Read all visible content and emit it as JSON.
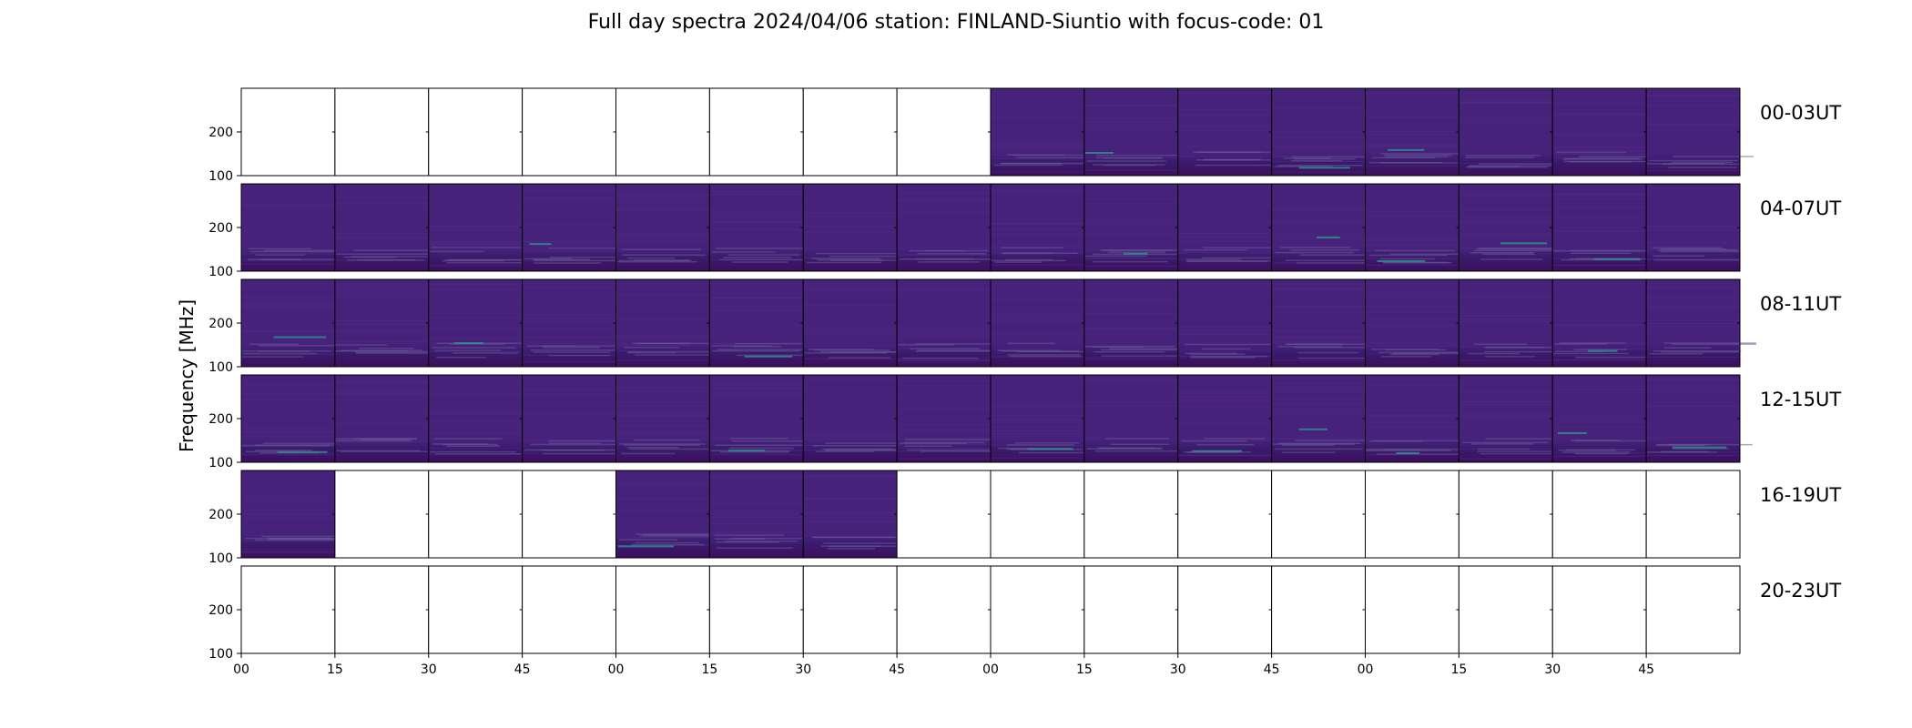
{
  "title": "Full day spectra 2024/04/06 station: FINLAND-Siuntio with focus-code: 01",
  "chart_data": {
    "type": "heatmap",
    "title": "Full day spectra 2024/04/06 station: FINLAND-Siuntio with focus-code: 01",
    "ylabel": "Frequency [MHz]",
    "xlabel": "",
    "y_ticks": [
      "100",
      "200"
    ],
    "ylim": [
      100,
      300
    ],
    "x_tick_labels": [
      "00",
      "15",
      "30",
      "45",
      "00",
      "15",
      "30",
      "45",
      "00",
      "15",
      "30",
      "45",
      "00",
      "15",
      "30",
      "45"
    ],
    "panels_per_row": 16,
    "minutes_per_panel": 15,
    "rows": [
      {
        "label": "00-03UT",
        "filled": [
          false,
          false,
          false,
          false,
          false,
          false,
          false,
          false,
          true,
          true,
          true,
          true,
          true,
          true,
          true,
          true
        ]
      },
      {
        "label": "04-07UT",
        "filled": [
          true,
          true,
          true,
          true,
          true,
          true,
          true,
          true,
          true,
          true,
          true,
          true,
          true,
          true,
          true,
          true
        ]
      },
      {
        "label": "08-11UT",
        "filled": [
          true,
          true,
          true,
          true,
          true,
          true,
          true,
          true,
          true,
          true,
          true,
          true,
          true,
          true,
          true,
          true
        ]
      },
      {
        "label": "12-15UT",
        "filled": [
          true,
          true,
          true,
          true,
          true,
          true,
          true,
          true,
          true,
          true,
          true,
          true,
          true,
          true,
          true,
          true
        ]
      },
      {
        "label": "16-19UT",
        "filled": [
          true,
          false,
          false,
          false,
          true,
          true,
          true,
          false,
          false,
          false,
          false,
          false,
          false,
          false,
          false,
          false
        ]
      },
      {
        "label": "20-23UT",
        "filled": [
          false,
          false,
          false,
          false,
          false,
          false,
          false,
          false,
          false,
          false,
          false,
          false,
          false,
          false,
          false,
          false
        ]
      }
    ],
    "colormap": {
      "low": "#3d0f5e",
      "mid": "#46227a",
      "high": "#2c8f8c",
      "peak": "#3fbfa8"
    }
  }
}
